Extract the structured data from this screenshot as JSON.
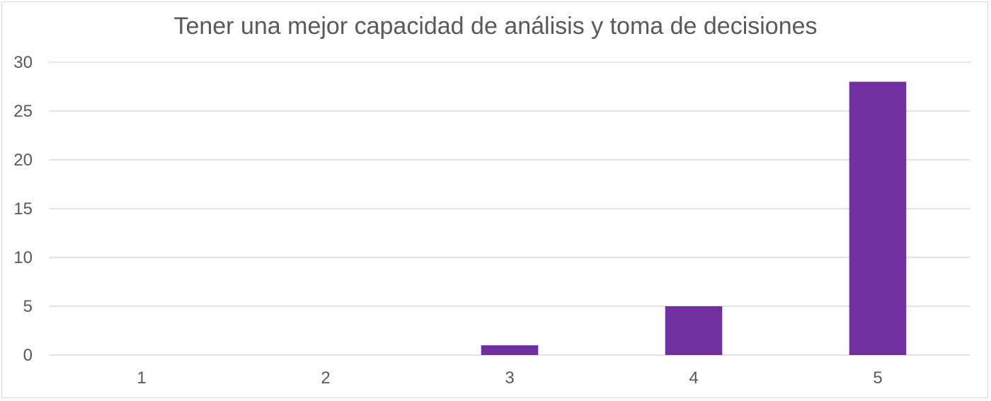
{
  "chart_data": {
    "type": "bar",
    "title": "Tener una mejor capacidad de análisis y toma de decisiones",
    "categories": [
      "1",
      "2",
      "3",
      "4",
      "5"
    ],
    "values": [
      0,
      0,
      1,
      5,
      28
    ],
    "ylim": [
      0,
      30
    ],
    "yticks": [
      0,
      5,
      10,
      15,
      20,
      25,
      30
    ],
    "grid": true,
    "legend": "none",
    "bar_color": "#7030a0",
    "grid_color": "#d9d9d9"
  }
}
